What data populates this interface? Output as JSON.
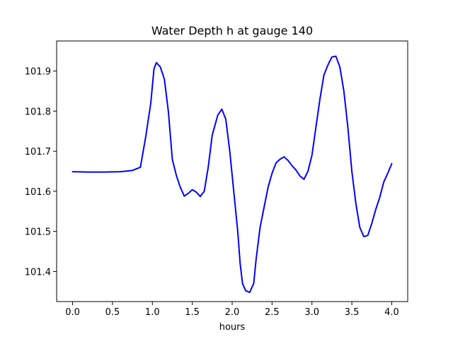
{
  "chart_data": {
    "type": "line",
    "title": "Water Depth h at gauge 140",
    "xlabel": "hours",
    "ylabel": "",
    "xlim": [
      -0.2,
      4.2
    ],
    "ylim": [
      101.325,
      101.975
    ],
    "x_ticks": [
      0.0,
      0.5,
      1.0,
      1.5,
      2.0,
      2.5,
      3.0,
      3.5,
      4.0
    ],
    "x_tick_labels": [
      "0.0",
      "0.5",
      "1.0",
      "1.5",
      "2.0",
      "2.5",
      "3.0",
      "3.5",
      "4.0"
    ],
    "y_ticks": [
      101.4,
      101.5,
      101.6,
      101.7,
      101.8,
      101.9
    ],
    "y_tick_labels": [
      "101.4",
      "101.5",
      "101.6",
      "101.7",
      "101.8",
      "101.9"
    ],
    "grid": false,
    "legend": "none",
    "series": [
      {
        "color": "#0000ff",
        "points": [
          [
            0.0,
            101.649
          ],
          [
            0.2,
            101.648
          ],
          [
            0.4,
            101.648
          ],
          [
            0.6,
            101.649
          ],
          [
            0.75,
            101.652
          ],
          [
            0.85,
            101.66
          ],
          [
            0.92,
            101.74
          ],
          [
            0.98,
            101.82
          ],
          [
            1.02,
            101.905
          ],
          [
            1.05,
            101.921
          ],
          [
            1.1,
            101.91
          ],
          [
            1.15,
            101.88
          ],
          [
            1.2,
            101.8
          ],
          [
            1.25,
            101.68
          ],
          [
            1.3,
            101.64
          ],
          [
            1.35,
            101.61
          ],
          [
            1.4,
            101.588
          ],
          [
            1.45,
            101.595
          ],
          [
            1.5,
            101.604
          ],
          [
            1.55,
            101.598
          ],
          [
            1.6,
            101.587
          ],
          [
            1.65,
            101.6
          ],
          [
            1.7,
            101.66
          ],
          [
            1.75,
            101.74
          ],
          [
            1.82,
            101.79
          ],
          [
            1.87,
            101.805
          ],
          [
            1.92,
            101.78
          ],
          [
            1.97,
            101.7
          ],
          [
            2.02,
            101.6
          ],
          [
            2.07,
            101.5
          ],
          [
            2.1,
            101.42
          ],
          [
            2.13,
            101.37
          ],
          [
            2.17,
            101.352
          ],
          [
            2.22,
            101.348
          ],
          [
            2.27,
            101.37
          ],
          [
            2.3,
            101.43
          ],
          [
            2.35,
            101.51
          ],
          [
            2.4,
            101.56
          ],
          [
            2.45,
            101.61
          ],
          [
            2.5,
            101.645
          ],
          [
            2.55,
            101.671
          ],
          [
            2.6,
            101.68
          ],
          [
            2.65,
            101.686
          ],
          [
            2.7,
            101.677
          ],
          [
            2.75,
            101.664
          ],
          [
            2.8,
            101.653
          ],
          [
            2.85,
            101.638
          ],
          [
            2.9,
            101.63
          ],
          [
            2.95,
            101.65
          ],
          [
            3.0,
            101.69
          ],
          [
            3.05,
            101.76
          ],
          [
            3.1,
            101.83
          ],
          [
            3.15,
            101.89
          ],
          [
            3.2,
            101.915
          ],
          [
            3.25,
            101.935
          ],
          [
            3.3,
            101.937
          ],
          [
            3.35,
            101.91
          ],
          [
            3.4,
            101.85
          ],
          [
            3.45,
            101.76
          ],
          [
            3.5,
            101.65
          ],
          [
            3.55,
            101.57
          ],
          [
            3.6,
            101.51
          ],
          [
            3.65,
            101.487
          ],
          [
            3.7,
            101.49
          ],
          [
            3.75,
            101.52
          ],
          [
            3.8,
            101.555
          ],
          [
            3.85,
            101.585
          ],
          [
            3.9,
            101.623
          ],
          [
            3.95,
            101.645
          ],
          [
            4.0,
            101.669
          ]
        ]
      }
    ]
  }
}
